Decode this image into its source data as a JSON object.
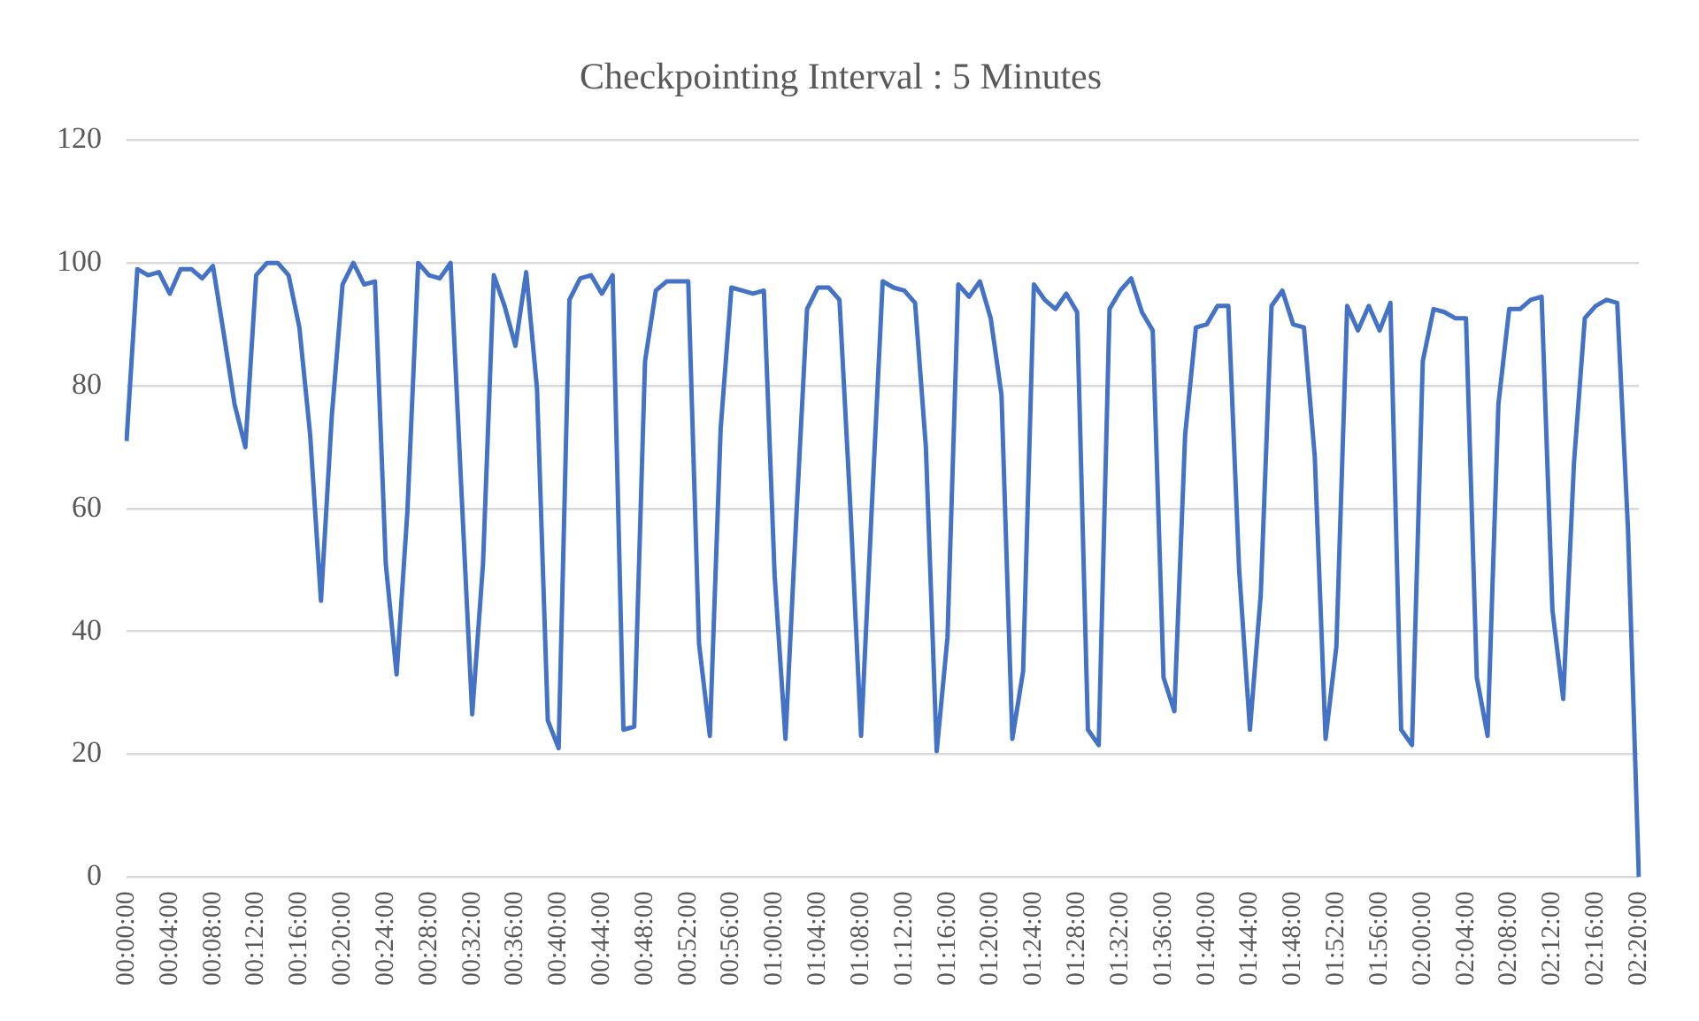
{
  "chart_data": {
    "type": "line",
    "title": "Checkpointing Interval : 5 Minutes",
    "categories": [
      "00:00:00",
      null,
      null,
      null,
      "00:04:00",
      null,
      null,
      null,
      "00:08:00",
      null,
      null,
      null,
      "00:12:00",
      null,
      null,
      null,
      "00:16:00",
      null,
      null,
      null,
      "00:20:00",
      null,
      null,
      null,
      "00:24:00",
      null,
      null,
      null,
      "00:28:00",
      null,
      null,
      null,
      "00:32:00",
      null,
      null,
      null,
      "00:36:00",
      null,
      null,
      null,
      "00:40:00",
      null,
      null,
      null,
      "00:44:00",
      null,
      null,
      null,
      "00:48:00",
      null,
      null,
      null,
      "00:52:00",
      null,
      null,
      null,
      "00:56:00",
      null,
      null,
      null,
      "01:00:00",
      null,
      null,
      null,
      "01:04:00",
      null,
      null,
      null,
      "01:08:00",
      null,
      null,
      null,
      "01:12:00",
      null,
      null,
      null,
      "01:16:00",
      null,
      null,
      null,
      "01:20:00",
      null,
      null,
      null,
      "01:24:00",
      null,
      null,
      null,
      "01:28:00",
      null,
      null,
      null,
      "01:32:00",
      null,
      null,
      null,
      "01:36:00",
      null,
      null,
      null,
      "01:40:00",
      null,
      null,
      null,
      "01:44:00",
      null,
      null,
      null,
      "01:48:00",
      null,
      null,
      null,
      "01:52:00",
      null,
      null,
      null,
      "01:56:00",
      null,
      null,
      null,
      "02:00:00",
      null,
      null,
      null,
      "02:04:00",
      null,
      null,
      null,
      "02:08:00",
      null,
      null,
      null,
      "02:12:00",
      null,
      null,
      null,
      "02:16:00",
      null,
      null,
      null,
      "02:20:00"
    ],
    "series": [
      {
        "color": "#4472c4",
        "values": [
          71,
          99,
          98,
          98.5,
          95,
          99,
          99,
          97.5,
          99.5,
          88.5,
          77,
          70,
          98,
          100,
          100,
          98,
          89.5,
          72,
          45,
          75,
          96.5,
          100,
          96.5,
          97,
          51,
          33,
          59.5,
          100,
          98,
          97.5,
          100,
          63,
          26.5,
          51,
          98,
          93,
          86.5,
          98.5,
          79.5,
          25.5,
          21,
          94,
          97.5,
          98,
          95,
          98,
          24,
          24.5,
          84,
          95.5,
          97,
          97,
          97,
          38,
          23,
          73,
          96,
          95.5,
          95,
          95.5,
          49,
          22.5,
          58.5,
          92.5,
          96,
          96,
          94,
          60.5,
          23,
          60.5,
          97,
          96,
          95.5,
          93.5,
          70,
          20.5,
          39,
          96.5,
          94.5,
          97,
          91,
          78.5,
          22.5,
          33.5,
          96.5,
          94,
          92.5,
          95,
          92,
          24,
          21.5,
          92.5,
          95.5,
          97.5,
          92,
          89,
          32.5,
          27,
          72,
          89.5,
          90,
          93,
          93,
          50,
          24,
          46,
          93,
          95.5,
          90,
          89.5,
          68.5,
          22.5,
          37.5,
          93,
          89,
          93,
          89,
          93.5,
          24,
          21.5,
          84,
          92.5,
          92,
          91,
          91,
          32.5,
          23,
          77,
          92.5,
          92.5,
          94,
          94.5,
          43.5,
          29,
          67.5,
          91,
          93,
          94,
          93.5,
          56.5,
          0
        ]
      }
    ],
    "ylim": [
      0,
      120
    ],
    "yticks": [
      0,
      20,
      40,
      60,
      80,
      100,
      120
    ],
    "grid": "y",
    "legend": false,
    "marker": "none",
    "line_style": "solid"
  }
}
